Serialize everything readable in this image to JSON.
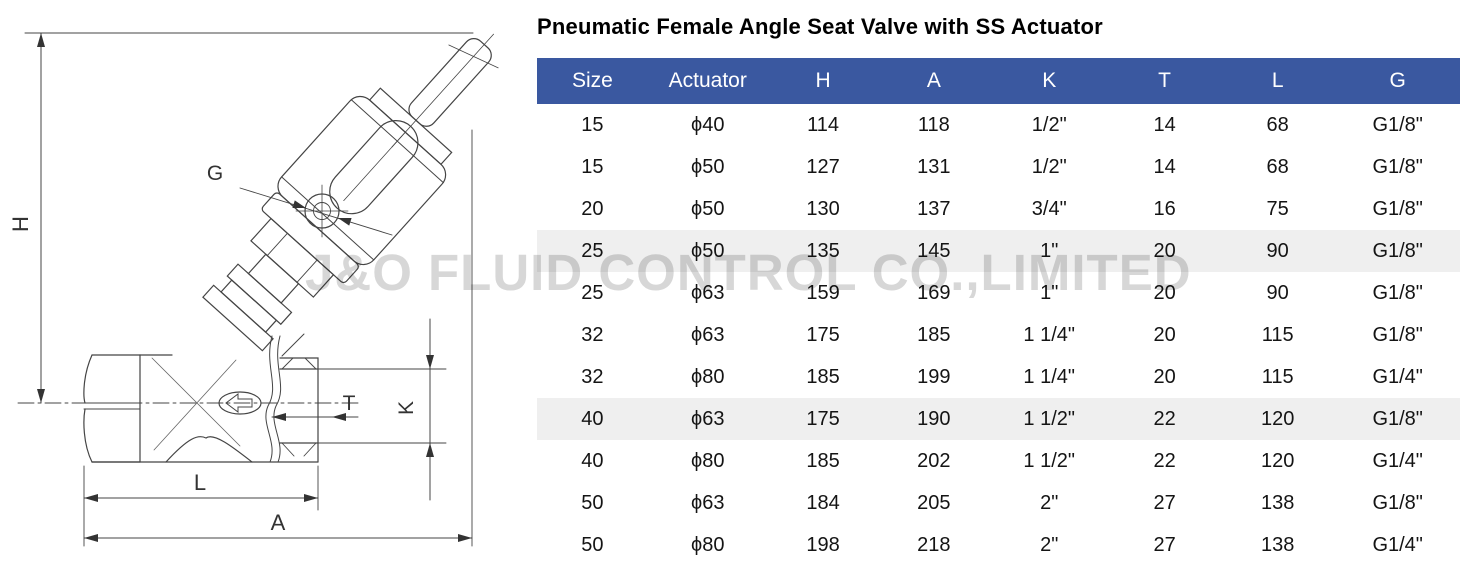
{
  "title": "Pneumatic Female Angle Seat Valve with SS Actuator",
  "watermark": "J&O FLUID CONTROL CO.,LIMITED",
  "colors": {
    "header_bg": "#3a58a0",
    "header_text": "#ffffff",
    "stripe_row_bg": "#efefef",
    "line_color": "#444444",
    "watermark_color": "#d7d7d7"
  },
  "diagram": {
    "description": "Technical line drawing of pneumatic angle seat valve, actuator tilted 45 degrees, female threaded ports",
    "labels": {
      "h": "H",
      "g": "G",
      "t": "T",
      "k": "K",
      "l": "L",
      "a": "A"
    }
  },
  "table": {
    "columns": [
      "Size",
      "Actuator",
      "H",
      "A",
      "K",
      "T",
      "L",
      "G"
    ],
    "rows": [
      {
        "cells": [
          "15",
          "ϕ40",
          "114",
          "118",
          "1/2\"",
          "14",
          "68",
          "G1/8\""
        ],
        "shaded": false
      },
      {
        "cells": [
          "15",
          "ϕ50",
          "127",
          "131",
          "1/2\"",
          "14",
          "68",
          "G1/8\""
        ],
        "shaded": false
      },
      {
        "cells": [
          "20",
          "ϕ50",
          "130",
          "137",
          "3/4\"",
          "16",
          "75",
          "G1/8\""
        ],
        "shaded": false
      },
      {
        "cells": [
          "25",
          "ϕ50",
          "135",
          "145",
          "1\"",
          "20",
          "90",
          "G1/8\""
        ],
        "shaded": true
      },
      {
        "cells": [
          "25",
          "ϕ63",
          "159",
          "169",
          "1\"",
          "20",
          "90",
          "G1/8\""
        ],
        "shaded": false
      },
      {
        "cells": [
          "32",
          "ϕ63",
          "175",
          "185",
          "1 1/4\"",
          "20",
          "115",
          "G1/8\""
        ],
        "shaded": false
      },
      {
        "cells": [
          "32",
          "ϕ80",
          "185",
          "199",
          "1 1/4\"",
          "20",
          "115",
          "G1/4\""
        ],
        "shaded": false
      },
      {
        "cells": [
          "40",
          "ϕ63",
          "175",
          "190",
          "1 1/2\"",
          "22",
          "120",
          "G1/8\""
        ],
        "shaded": true
      },
      {
        "cells": [
          "40",
          "ϕ80",
          "185",
          "202",
          "1 1/2\"",
          "22",
          "120",
          "G1/4\""
        ],
        "shaded": false
      },
      {
        "cells": [
          "50",
          "ϕ63",
          "184",
          "205",
          "2\"",
          "27",
          "138",
          "G1/8\""
        ],
        "shaded": false
      },
      {
        "cells": [
          "50",
          "ϕ80",
          "198",
          "218",
          "2\"",
          "27",
          "138",
          "G1/4\""
        ],
        "shaded": false
      }
    ]
  }
}
